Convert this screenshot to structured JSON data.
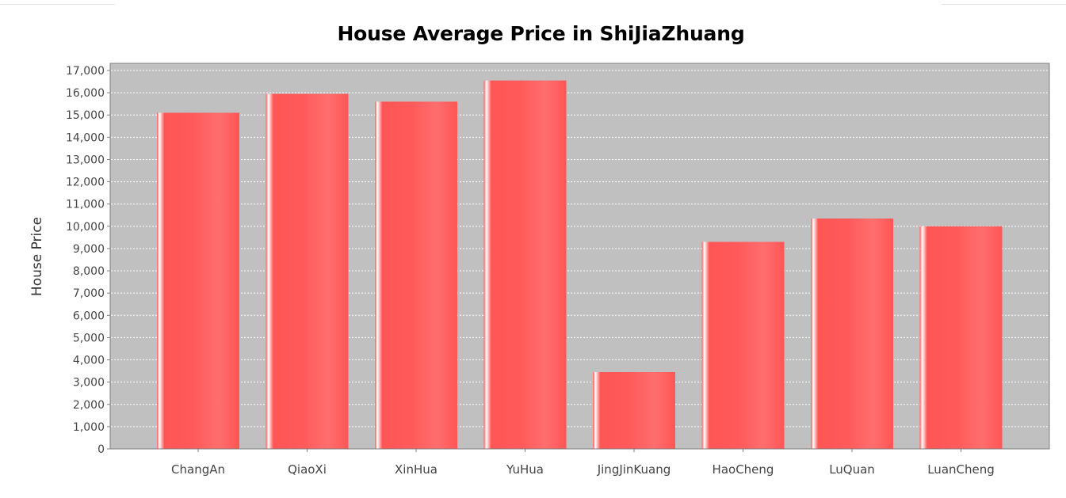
{
  "chart_data": {
    "type": "bar",
    "title": "House Average Price in ShiJiaZhuang",
    "xlabel": "",
    "ylabel": "House Price",
    "categories": [
      "ChangAn",
      "QiaoXi",
      "XinHua",
      "YuHua",
      "JingJinKuang",
      "HaoCheng",
      "LuQuan",
      "LuanCheng"
    ],
    "values": [
      15100,
      15950,
      15600,
      16550,
      3450,
      9300,
      10350,
      10000
    ],
    "ylim": [
      0,
      17000
    ],
    "ytick_step": 1000,
    "grid": true,
    "legend": "none",
    "colors": {
      "bar": "#ff5555",
      "bar_highlight": "#ffffff",
      "plot_background": "#c0c0c0",
      "gridline": "#ffffff",
      "axis": "#808080"
    }
  }
}
